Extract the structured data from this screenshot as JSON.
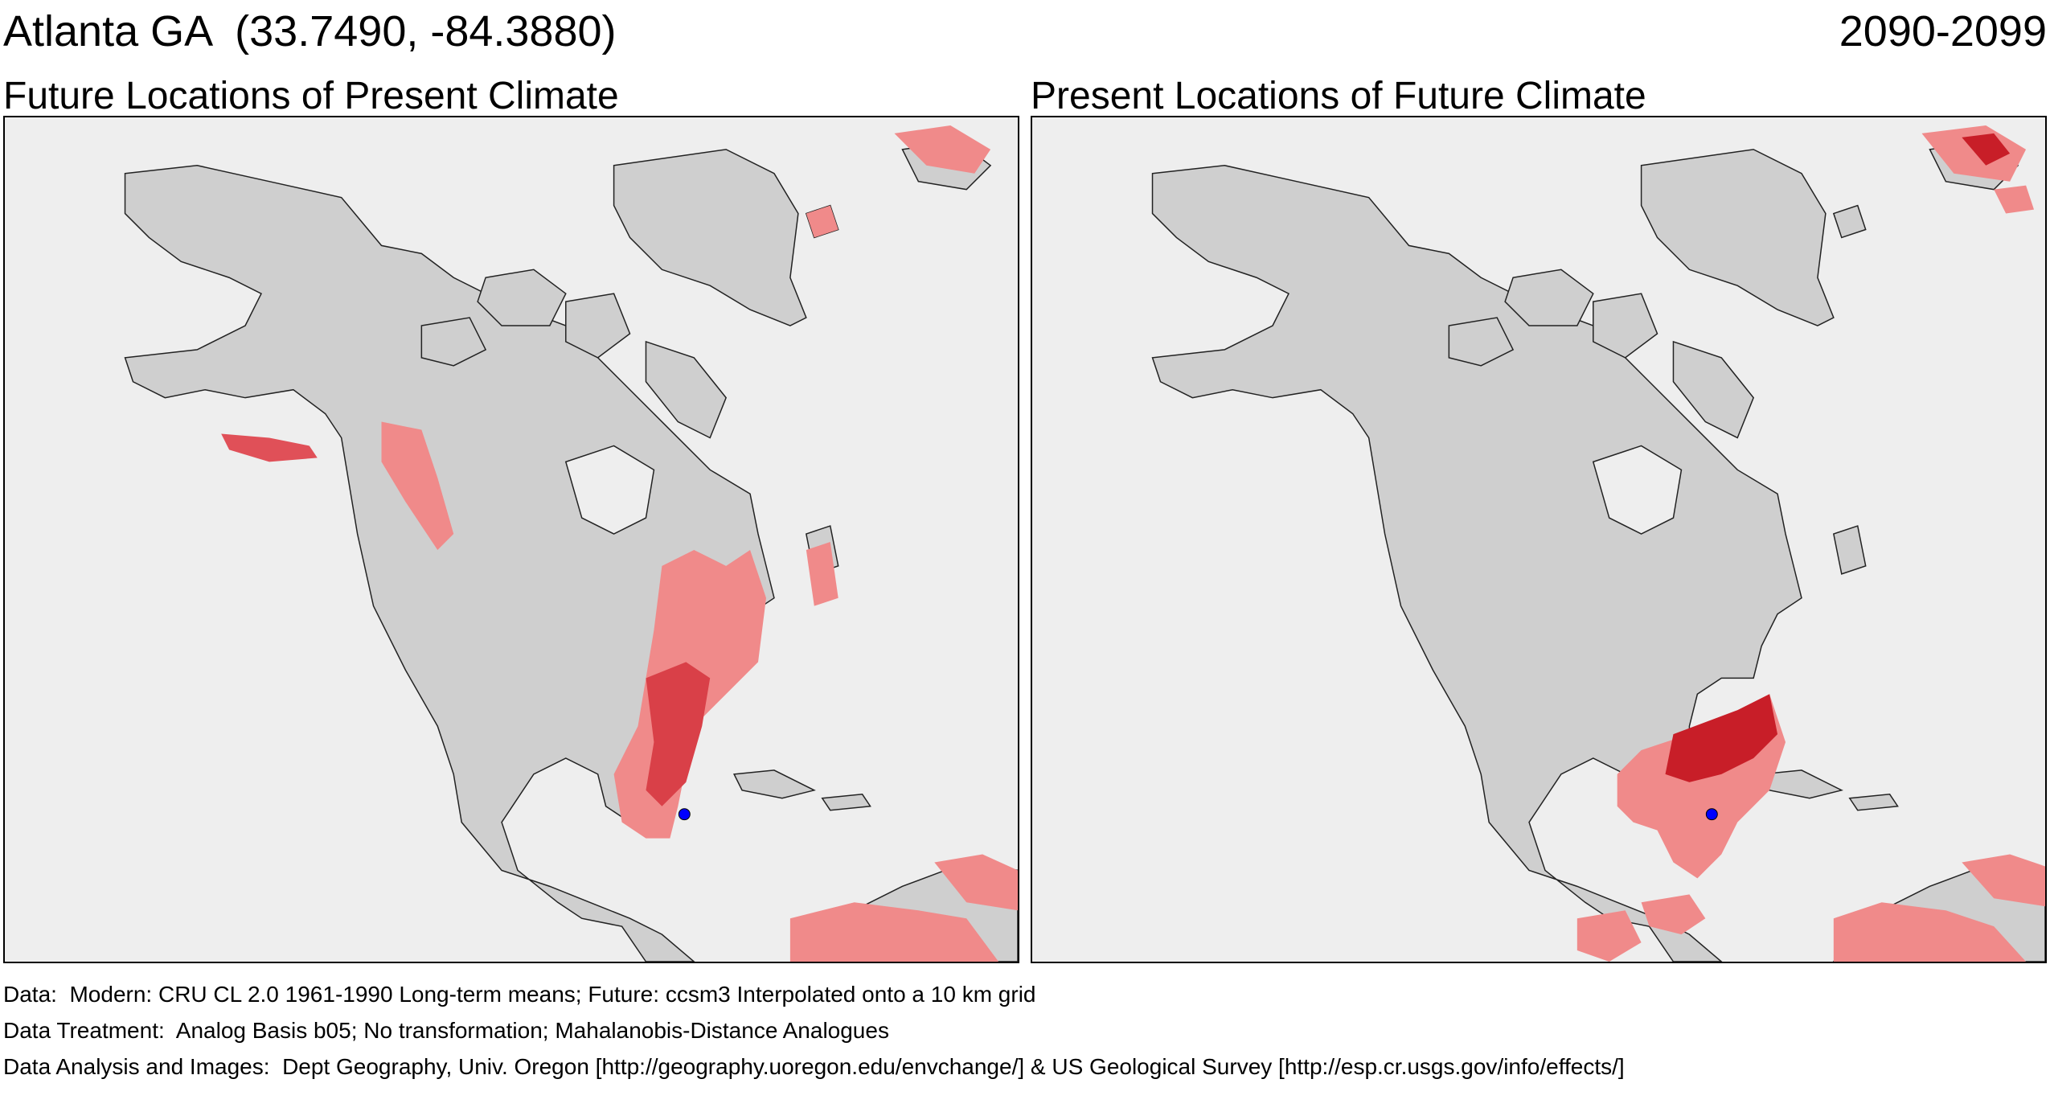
{
  "header": {
    "location": "Atlanta GA  (33.7490, -84.3880)",
    "period": "2090-2099"
  },
  "panels": {
    "left_title": "Future Locations of Present Climate",
    "right_title": "Present Locations of Future Climate"
  },
  "footer": {
    "data": "Data:  Modern: CRU CL 2.0 1961-1990 Long-term means; Future: ccsm3 Interpolated onto a 10 km grid",
    "treatment": "Data Treatment:  Analog Basis b05; No transformation; Mahalanobis-Distance Analogues",
    "analysis": "Data Analysis and Images:  Dept Geography, Univ. Oregon [http://geography.uoregon.edu/envchange/] & US Geological Survey [http://esp.cr.usgs.gov/info/effects/]"
  },
  "colors": {
    "ocean": "#eeeeee",
    "land": "#cfcfcf",
    "analog_light": "#f08a8a",
    "analog_dark": "#c81e28",
    "location_marker": "#0000ff"
  }
}
